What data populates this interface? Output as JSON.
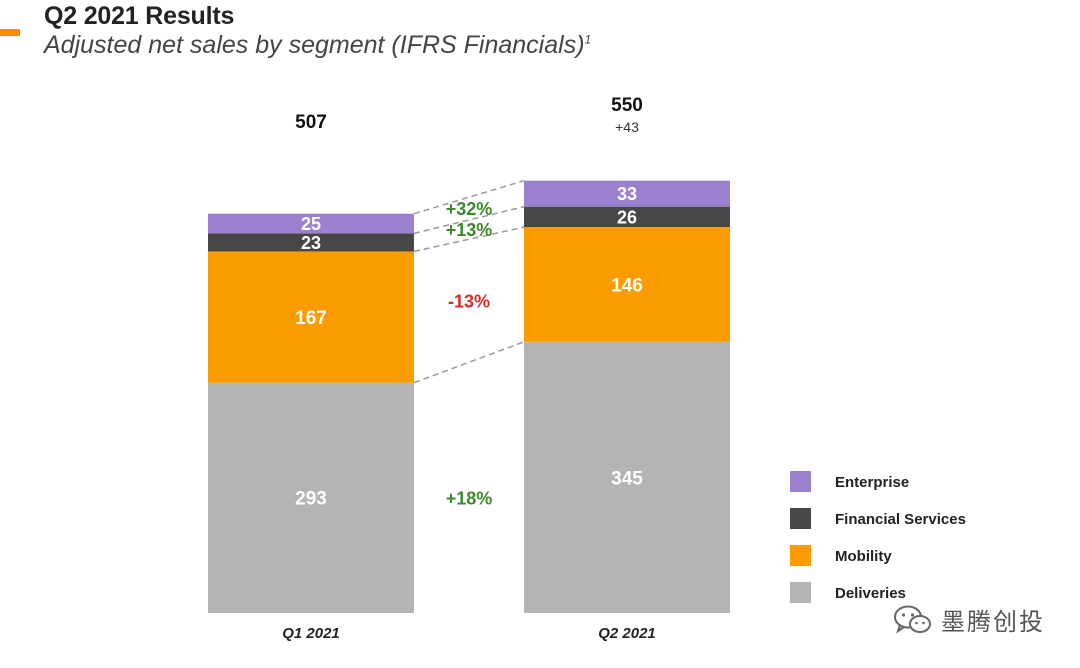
{
  "header": {
    "title": "Q2 2021 Results",
    "subtitle": "Adjusted net sales by segment (IFRS Financials)",
    "subtitle_sup": "1"
  },
  "chart_data": {
    "type": "bar",
    "stacked": true,
    "categories": [
      "Q1 2021",
      "Q2 2021"
    ],
    "series": [
      {
        "name": "Deliveries",
        "values": [
          293,
          345
        ],
        "color": "#b4b4b4",
        "label_color": "#ffffff"
      },
      {
        "name": "Mobility",
        "values": [
          167,
          146
        ],
        "color": "#fa9b00",
        "label_color": "#ffffff"
      },
      {
        "name": "Financial Services",
        "values": [
          23,
          26
        ],
        "color": "#474747",
        "label_color": "#ffffff"
      },
      {
        "name": "Enterprise",
        "values": [
          25,
          33
        ],
        "color": "#9b80cf",
        "label_color": "#ffffff"
      }
    ],
    "totals": [
      "507",
      "550"
    ],
    "total_change": "+43",
    "growth_labels": [
      {
        "series": "Enterprise",
        "text": "+32%",
        "color": "#3a8a2a"
      },
      {
        "series": "Financial Services",
        "text": "+13%",
        "color": "#3a8a2a"
      },
      {
        "series": "Mobility",
        "text": "-13%",
        "color": "#d62b2b"
      },
      {
        "series": "Deliveries",
        "text": "+18%",
        "color": "#3a8a2a"
      }
    ],
    "legend": {
      "placement": "right",
      "order": [
        "Enterprise",
        "Financial Services",
        "Mobility",
        "Deliveries"
      ]
    },
    "grid": false
  },
  "watermark": {
    "text": "墨腾创投",
    "icon": "wechat-icon"
  }
}
